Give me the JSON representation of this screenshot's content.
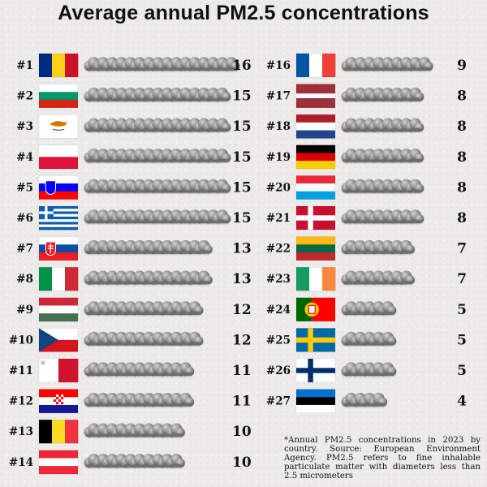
{
  "chart_data": {
    "type": "bar",
    "title": "Average annual PM2.5 concentrations",
    "xlabel": "",
    "ylabel": "",
    "ylim": [
      0,
      16
    ],
    "categories": [
      "Romania",
      "Bulgaria",
      "Cyprus",
      "Poland",
      "Slovenia",
      "Greece",
      "Slovakia",
      "Italy",
      "Hungary",
      "Czechia",
      "Malta",
      "Croatia",
      "Belgium",
      "Austria",
      "France",
      "Latvia",
      "Netherlands",
      "Germany",
      "Luxembourg",
      "Denmark",
      "Lithuania",
      "Ireland",
      "Portugal",
      "Sweden",
      "Finland",
      "Estonia"
    ],
    "ranks": [
      "#1",
      "#2",
      "#3",
      "#4",
      "#5",
      "#6",
      "#7",
      "#8",
      "#9",
      "#10",
      "#11",
      "#12",
      "#13",
      "#14",
      "#16",
      "#17",
      "#18",
      "#19",
      "#20",
      "#21",
      "#22",
      "#23",
      "#24",
      "#25",
      "#26",
      "#27"
    ],
    "values": [
      16,
      15,
      15,
      15,
      15,
      15,
      13,
      13,
      12,
      12,
      11,
      11,
      10,
      10,
      9,
      8,
      8,
      8,
      8,
      8,
      7,
      7,
      5,
      5,
      5,
      4
    ],
    "footnote": "*Annual PM2.5 concentrations in 2023 by country. Source: European Environment Agency. PM2.5 refers to fine inhalable particulate matter with diameters less than 2.5 micrometers"
  },
  "colors": {
    "cloud_dark": "#555555",
    "cloud_light": "#d4d4d4",
    "text": "#111111"
  }
}
